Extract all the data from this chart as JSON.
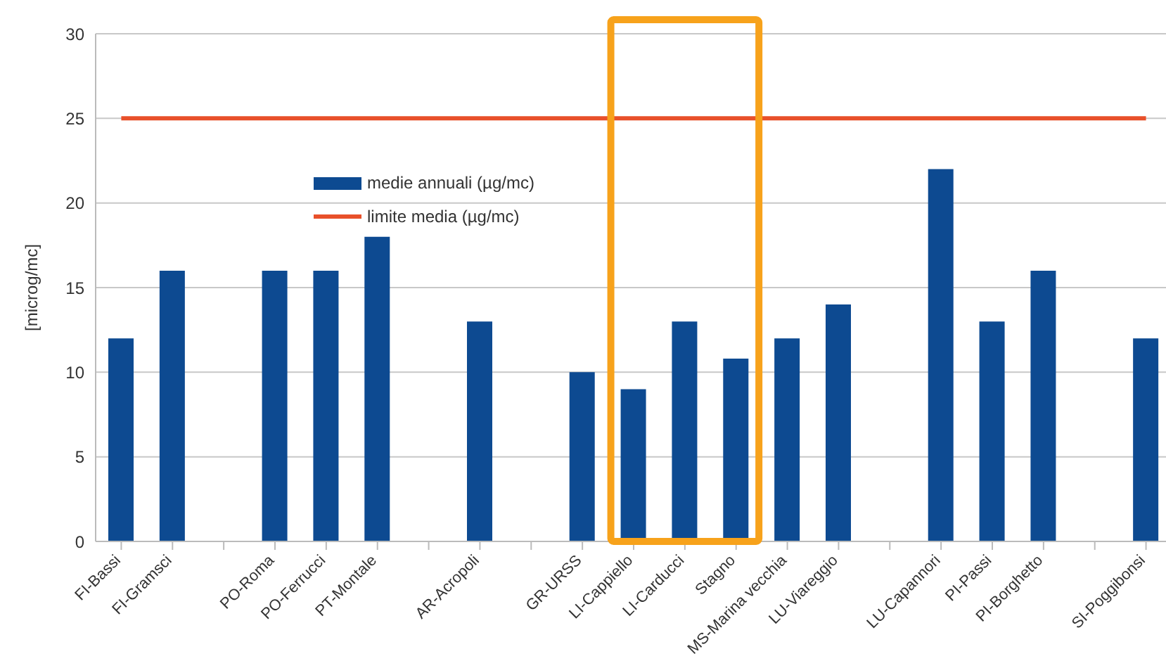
{
  "chart_data": {
    "type": "bar",
    "ylabel": "[microg/mc]",
    "categories": [
      "FI-Bassi",
      "FI-Gramsci",
      null,
      "PO-Roma",
      "PO-Ferrucci",
      "PT-Montale",
      null,
      "AR-Acropoli",
      null,
      "GR-URSS",
      "LI-Cappiello",
      "LI-Carducci",
      "Stagno",
      "MS-Marina vecchia",
      "LU-Viareggio",
      null,
      "LU-Capannori",
      "PI-Passi",
      "PI-Borghetto",
      null,
      "SI-Poggibonsi"
    ],
    "series": [
      {
        "name": "medie annuali (µg/mc)",
        "color": "#0d4a91",
        "values": [
          12,
          16,
          null,
          16,
          16,
          18,
          null,
          13,
          null,
          10,
          9,
          13,
          10.8,
          12,
          14,
          null,
          22,
          13,
          16,
          null,
          12
        ]
      },
      {
        "name": "limite media  (µg/mc)",
        "type": "line",
        "color": "#e8502a",
        "values": [
          25,
          25,
          25,
          25,
          25,
          25,
          25,
          25,
          25,
          25,
          25,
          25,
          25,
          25,
          25,
          25,
          25,
          25,
          25,
          25,
          25
        ]
      }
    ],
    "ylim": [
      0,
      30
    ],
    "yticks": [
      0,
      5,
      10,
      15,
      20,
      25,
      30
    ],
    "grid": "y",
    "legend": "top",
    "marker": "none"
  }
}
